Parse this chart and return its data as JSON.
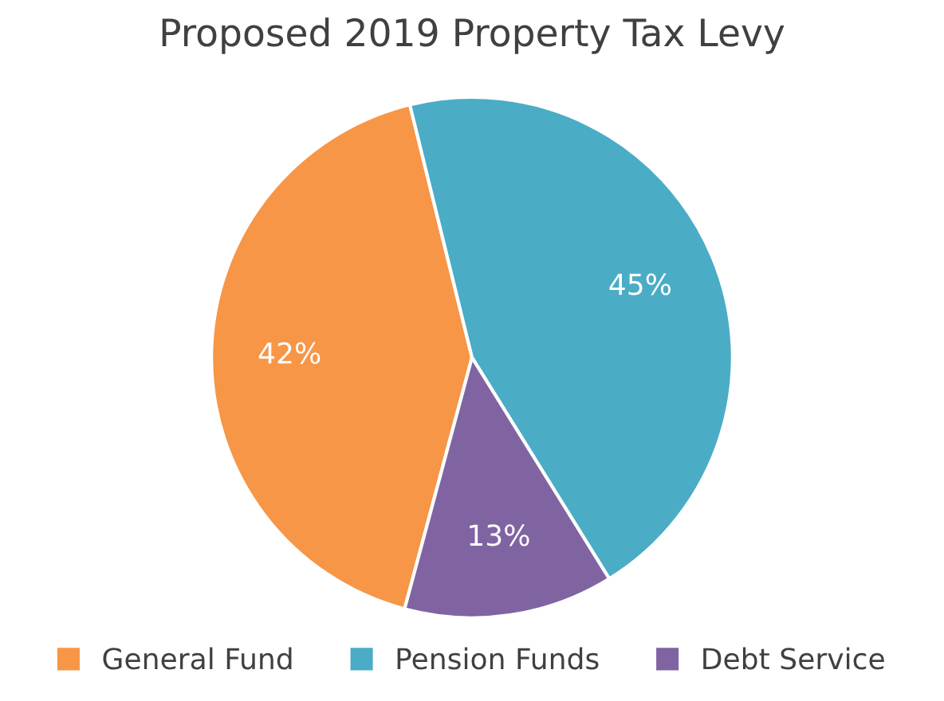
{
  "chart_data": {
    "type": "pie",
    "title": "Proposed 2019 Property Tax Levy",
    "categories": [
      "General Fund",
      "Pension Funds",
      "Debt Service"
    ],
    "values": [
      42,
      45,
      13
    ],
    "colors": [
      "#f79646",
      "#4bacc6",
      "#8064a2"
    ],
    "value_labels": [
      "42%",
      "45%",
      "13%"
    ],
    "legend": "bottom"
  }
}
